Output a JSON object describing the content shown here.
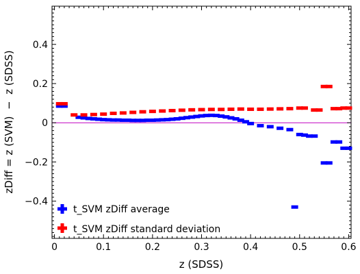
{
  "chart_data": {
    "type": "scatter",
    "title": "",
    "xlabel": "z (SDSS)",
    "ylabel": "zDiff = z (SVM)  −  z (SDSS)",
    "xlim": [
      -0.005,
      0.605
    ],
    "ylim": [
      -0.59,
      0.595
    ],
    "xticks": [
      0,
      0.1,
      0.2,
      0.3,
      0.4,
      0.5,
      0.6
    ],
    "xtick_labels": [
      "0",
      "0.1",
      "0.2",
      "0.3",
      "0.4",
      "0.5",
      "0.6"
    ],
    "yticks": [
      -0.4,
      -0.2,
      0,
      0.2,
      0.4
    ],
    "ytick_labels": [
      "−0.4",
      "−0.2",
      "0",
      "0.2",
      "0.4"
    ],
    "reference_line": {
      "y": 0,
      "color": "#c000c0"
    },
    "legend_position": "bottom-left",
    "grid": false,
    "series": [
      {
        "name": "t_SVM zDiff average",
        "color": "#0000ff",
        "points": [
          [
            0.01,
            0.085
          ],
          [
            0.02,
            0.085
          ],
          [
            0.05,
            0.028
          ],
          [
            0.06,
            0.025
          ],
          [
            0.07,
            0.022
          ],
          [
            0.08,
            0.02
          ],
          [
            0.09,
            0.018
          ],
          [
            0.1,
            0.016
          ],
          [
            0.11,
            0.015
          ],
          [
            0.12,
            0.014
          ],
          [
            0.13,
            0.014
          ],
          [
            0.14,
            0.013
          ],
          [
            0.15,
            0.013
          ],
          [
            0.16,
            0.012
          ],
          [
            0.17,
            0.012
          ],
          [
            0.18,
            0.012
          ],
          [
            0.19,
            0.013
          ],
          [
            0.2,
            0.013
          ],
          [
            0.21,
            0.014
          ],
          [
            0.22,
            0.015
          ],
          [
            0.23,
            0.016
          ],
          [
            0.24,
            0.018
          ],
          [
            0.25,
            0.02
          ],
          [
            0.26,
            0.023
          ],
          [
            0.27,
            0.026
          ],
          [
            0.28,
            0.029
          ],
          [
            0.29,
            0.032
          ],
          [
            0.3,
            0.035
          ],
          [
            0.31,
            0.037
          ],
          [
            0.32,
            0.038
          ],
          [
            0.33,
            0.037
          ],
          [
            0.34,
            0.034
          ],
          [
            0.35,
            0.03
          ],
          [
            0.36,
            0.025
          ],
          [
            0.37,
            0.02
          ],
          [
            0.38,
            0.013
          ],
          [
            0.39,
            0.005
          ],
          [
            0.4,
            -0.004
          ],
          [
            0.42,
            -0.015
          ],
          [
            0.44,
            -0.02
          ],
          [
            0.46,
            -0.028
          ],
          [
            0.48,
            -0.035
          ],
          [
            0.49,
            -0.43
          ],
          [
            0.5,
            -0.06
          ],
          [
            0.51,
            -0.063
          ],
          [
            0.52,
            -0.068
          ],
          [
            0.53,
            -0.068
          ],
          [
            0.55,
            -0.205
          ],
          [
            0.56,
            -0.205
          ],
          [
            0.57,
            -0.098
          ],
          [
            0.58,
            -0.098
          ],
          [
            0.59,
            -0.13
          ],
          [
            0.6,
            -0.13
          ]
        ]
      },
      {
        "name": "t_SVM zDiff standard deviation",
        "color": "#ff0000",
        "points": [
          [
            0.01,
            0.097
          ],
          [
            0.02,
            0.097
          ],
          [
            0.04,
            0.04
          ],
          [
            0.06,
            0.04
          ],
          [
            0.08,
            0.042
          ],
          [
            0.1,
            0.044
          ],
          [
            0.12,
            0.048
          ],
          [
            0.14,
            0.05
          ],
          [
            0.16,
            0.053
          ],
          [
            0.18,
            0.056
          ],
          [
            0.2,
            0.058
          ],
          [
            0.22,
            0.06
          ],
          [
            0.24,
            0.062
          ],
          [
            0.26,
            0.064
          ],
          [
            0.28,
            0.066
          ],
          [
            0.3,
            0.067
          ],
          [
            0.32,
            0.068
          ],
          [
            0.34,
            0.068
          ],
          [
            0.36,
            0.069
          ],
          [
            0.38,
            0.07
          ],
          [
            0.4,
            0.069
          ],
          [
            0.42,
            0.069
          ],
          [
            0.44,
            0.07
          ],
          [
            0.46,
            0.071
          ],
          [
            0.48,
            0.072
          ],
          [
            0.5,
            0.075
          ],
          [
            0.51,
            0.075
          ],
          [
            0.53,
            0.065
          ],
          [
            0.54,
            0.065
          ],
          [
            0.55,
            0.185
          ],
          [
            0.56,
            0.185
          ],
          [
            0.57,
            0.072
          ],
          [
            0.58,
            0.072
          ],
          [
            0.59,
            0.075
          ],
          [
            0.6,
            0.075
          ]
        ]
      }
    ]
  }
}
